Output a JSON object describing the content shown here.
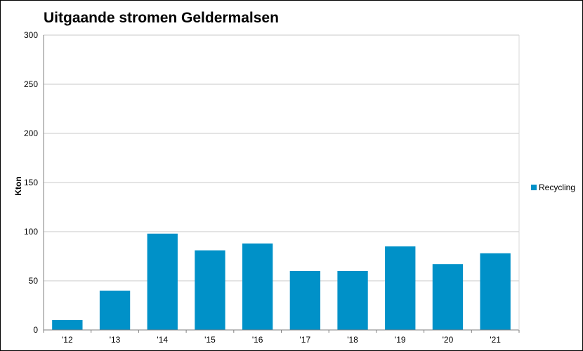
{
  "chart_data": {
    "type": "bar",
    "title": "Uitgaande stromen Geldermalsen",
    "ylabel": "Kton",
    "xlabel": "",
    "categories": [
      "'12",
      "'13",
      "'14",
      "'15",
      "'16",
      "'17",
      "'18",
      "'19",
      "'20",
      "'21"
    ],
    "series": [
      {
        "name": "Recycling",
        "values": [
          10,
          40,
          98,
          81,
          88,
          60,
          60,
          85,
          67,
          78
        ],
        "color": "#0091C8"
      }
    ],
    "ylim": [
      0,
      300
    ],
    "yticks": [
      0,
      50,
      100,
      150,
      200,
      250,
      300
    ],
    "grid": true,
    "legend_position": "right"
  }
}
